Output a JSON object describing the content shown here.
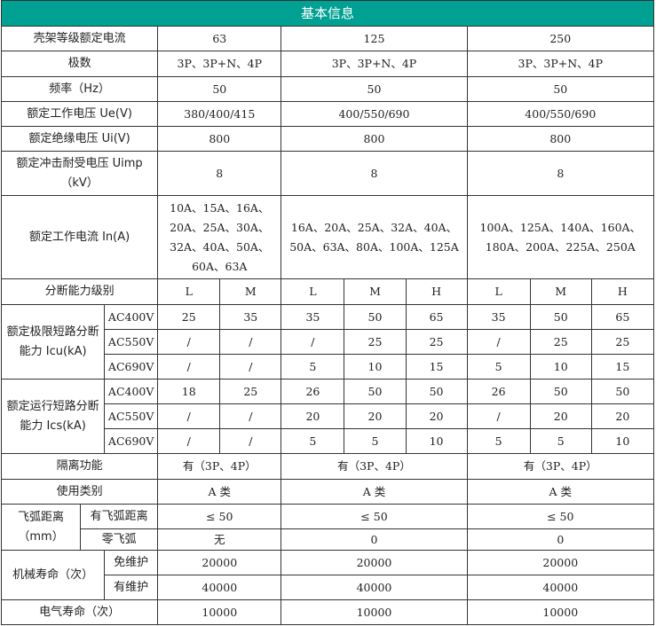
{
  "title": "基本信息",
  "header_color": "#00a092",
  "frame_current": {
    "label": "壳架等级额定电流",
    "values": [
      "63",
      "125",
      "250"
    ]
  },
  "poles": {
    "label": "极数",
    "values": [
      "3P、3P+N、4P",
      "3P、3P+N、4P",
      "3P、3P+N、4P"
    ]
  },
  "frequency": {
    "label": "频率（Hz）",
    "values": [
      "50",
      "50",
      "50"
    ]
  },
  "ue": {
    "label": "额定工作电压 Ue(V)",
    "values": [
      "380/400/415",
      "400/550/690",
      "400/550/690"
    ]
  },
  "ui": {
    "label": "额定绝缘电压 Ui(V)",
    "values": [
      "800",
      "800",
      "800"
    ]
  },
  "uimp": {
    "label": "额定冲击耐受电压 Uimp（kV）",
    "values": [
      "8",
      "8",
      "8"
    ]
  },
  "in": {
    "label": "额定工作电流 In(A)",
    "values": [
      "10A、15A、16A、20A、25A、30A、32A、40A、50A、60A、63A",
      "16A、20A、25A、32A、40A、50A、63A、80A、100A、125A",
      "100A、125A、140A、160A、180A、200A、225A、250A"
    ]
  },
  "breaking": {
    "label": "分断能力级别",
    "grades": [
      "L",
      "M",
      "L",
      "M",
      "H",
      "L",
      "M",
      "H"
    ]
  },
  "icu": {
    "label": "额定极限短路分断能力 Icu(kA)",
    "rows": [
      {
        "voltage": "AC400V",
        "values": [
          "25",
          "35",
          "35",
          "50",
          "65",
          "35",
          "50",
          "65"
        ]
      },
      {
        "voltage": "AC550V",
        "values": [
          "/",
          "/",
          "/",
          "25",
          "25",
          "/",
          "25",
          "25"
        ]
      },
      {
        "voltage": "AC690V",
        "values": [
          "/",
          "/",
          "5",
          "10",
          "15",
          "5",
          "10",
          "15"
        ]
      }
    ]
  },
  "ics": {
    "label": "额定运行短路分断能力 Ics(kA)",
    "rows": [
      {
        "voltage": "AC400V",
        "values": [
          "18",
          "25",
          "26",
          "50",
          "50",
          "26",
          "50",
          "50"
        ]
      },
      {
        "voltage": "AC550V",
        "values": [
          "/",
          "/",
          "20",
          "20",
          "20",
          "/",
          "20",
          "20"
        ]
      },
      {
        "voltage": "AC690V",
        "values": [
          "/",
          "/",
          "5",
          "5",
          "10",
          "5",
          "5",
          "10"
        ]
      }
    ]
  },
  "isolation": {
    "label": "隔离功能",
    "values": [
      "有（3P、4P）",
      "有（3P、4P）",
      "有（3P、4P）"
    ]
  },
  "category": {
    "label": "使用类别",
    "values": [
      "A 类",
      "A 类",
      "A 类"
    ]
  },
  "arc": {
    "label": "飞弧距离（mm）",
    "rows": [
      {
        "label": "有飞弧距离",
        "values": [
          "≤ 50",
          "≤ 50",
          "≤ 50"
        ]
      },
      {
        "label": "零飞弧",
        "values": [
          "无",
          "0",
          "0"
        ]
      }
    ]
  },
  "mech": {
    "label": "机械寿命（次）",
    "rows": [
      {
        "label": "免维护",
        "values": [
          "20000",
          "20000",
          "20000"
        ]
      },
      {
        "label": "有维护",
        "values": [
          "40000",
          "40000",
          "40000"
        ]
      }
    ]
  },
  "elec": {
    "label": "电气寿命（次）",
    "values": [
      "10000",
      "10000",
      "10000"
    ]
  }
}
